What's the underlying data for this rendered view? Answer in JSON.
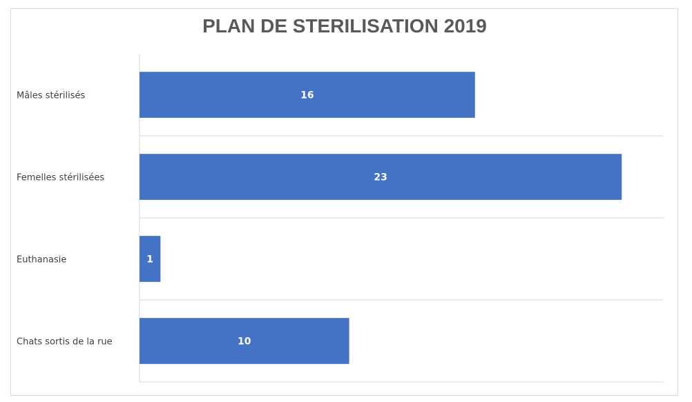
{
  "chart_data": {
    "type": "bar",
    "orientation": "horizontal",
    "title": "PLAN DE STERILISATION 2019",
    "categories": [
      "Mâles stérilisés",
      "Femelles stérilisées",
      "Euthanasie",
      "Chats sortis de la rue"
    ],
    "values": [
      16,
      23,
      1,
      10
    ],
    "data_labels": [
      "16",
      "23",
      "1",
      "10"
    ],
    "xlim": [
      0,
      25
    ],
    "grid": true,
    "legend": "none",
    "bar_color": "#4472c4"
  }
}
